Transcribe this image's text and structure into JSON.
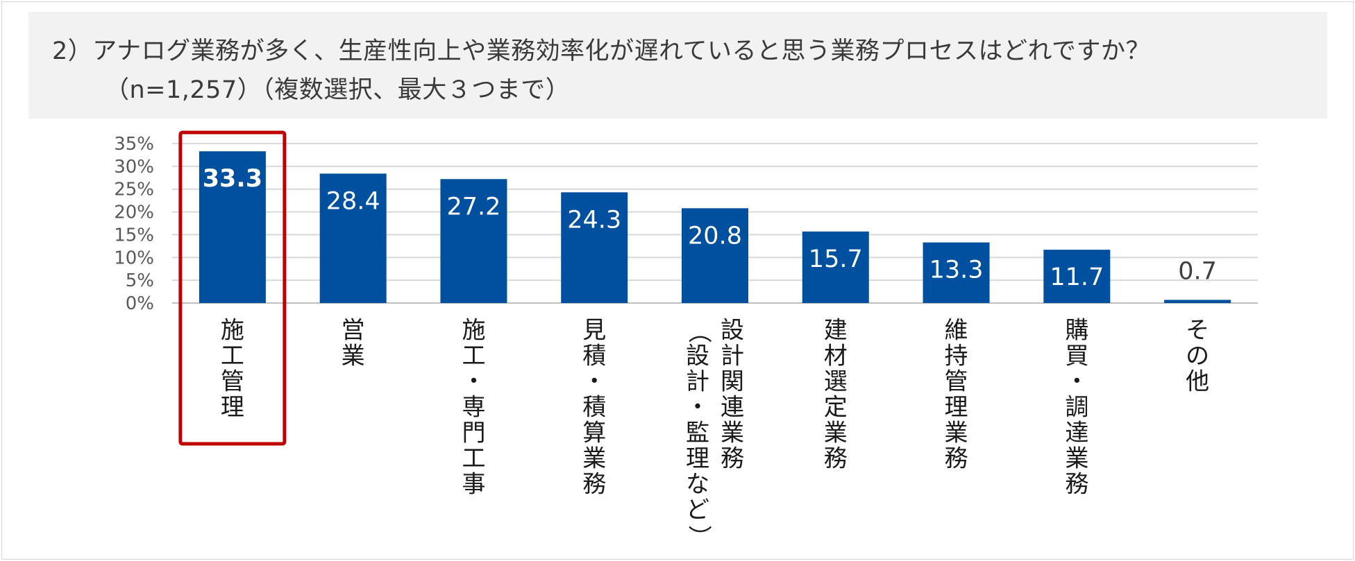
{
  "header": {
    "title_line1": "2）アナログ業務が多く、生産性向上や業務効率化が遅れていると思う業務プロセスはどれですか？",
    "title_line2": "（n=1,257）（複数選択、最大３つまで）"
  },
  "colors": {
    "bar": "#0050a0",
    "highlight_frame": "#c00000",
    "header_bg": "#f2f2f2",
    "gridline": "#d9d9d9"
  },
  "chart_data": {
    "type": "bar",
    "categories": [
      [
        "施工管理"
      ],
      [
        "営業"
      ],
      [
        "施工・専門工事"
      ],
      [
        "見積・積算業務"
      ],
      [
        "設計関連業務",
        "（設計・監理など）"
      ],
      [
        "建材選定業務"
      ],
      [
        "維持管理業務"
      ],
      [
        "購買・調達業務"
      ],
      [
        "その他"
      ]
    ],
    "values": [
      33.3,
      28.4,
      27.2,
      24.3,
      20.8,
      15.7,
      13.3,
      11.7,
      0.7
    ],
    "data_labels": [
      "33.3",
      "28.4",
      "27.2",
      "24.3",
      "20.8",
      "15.7",
      "13.3",
      "11.7",
      "0.7"
    ],
    "ylim": [
      0,
      35
    ],
    "yticks": [
      "0%",
      "5%",
      "10%",
      "15%",
      "20%",
      "25%",
      "30%",
      "35%"
    ],
    "grid": true,
    "highlighted_index": 0
  }
}
